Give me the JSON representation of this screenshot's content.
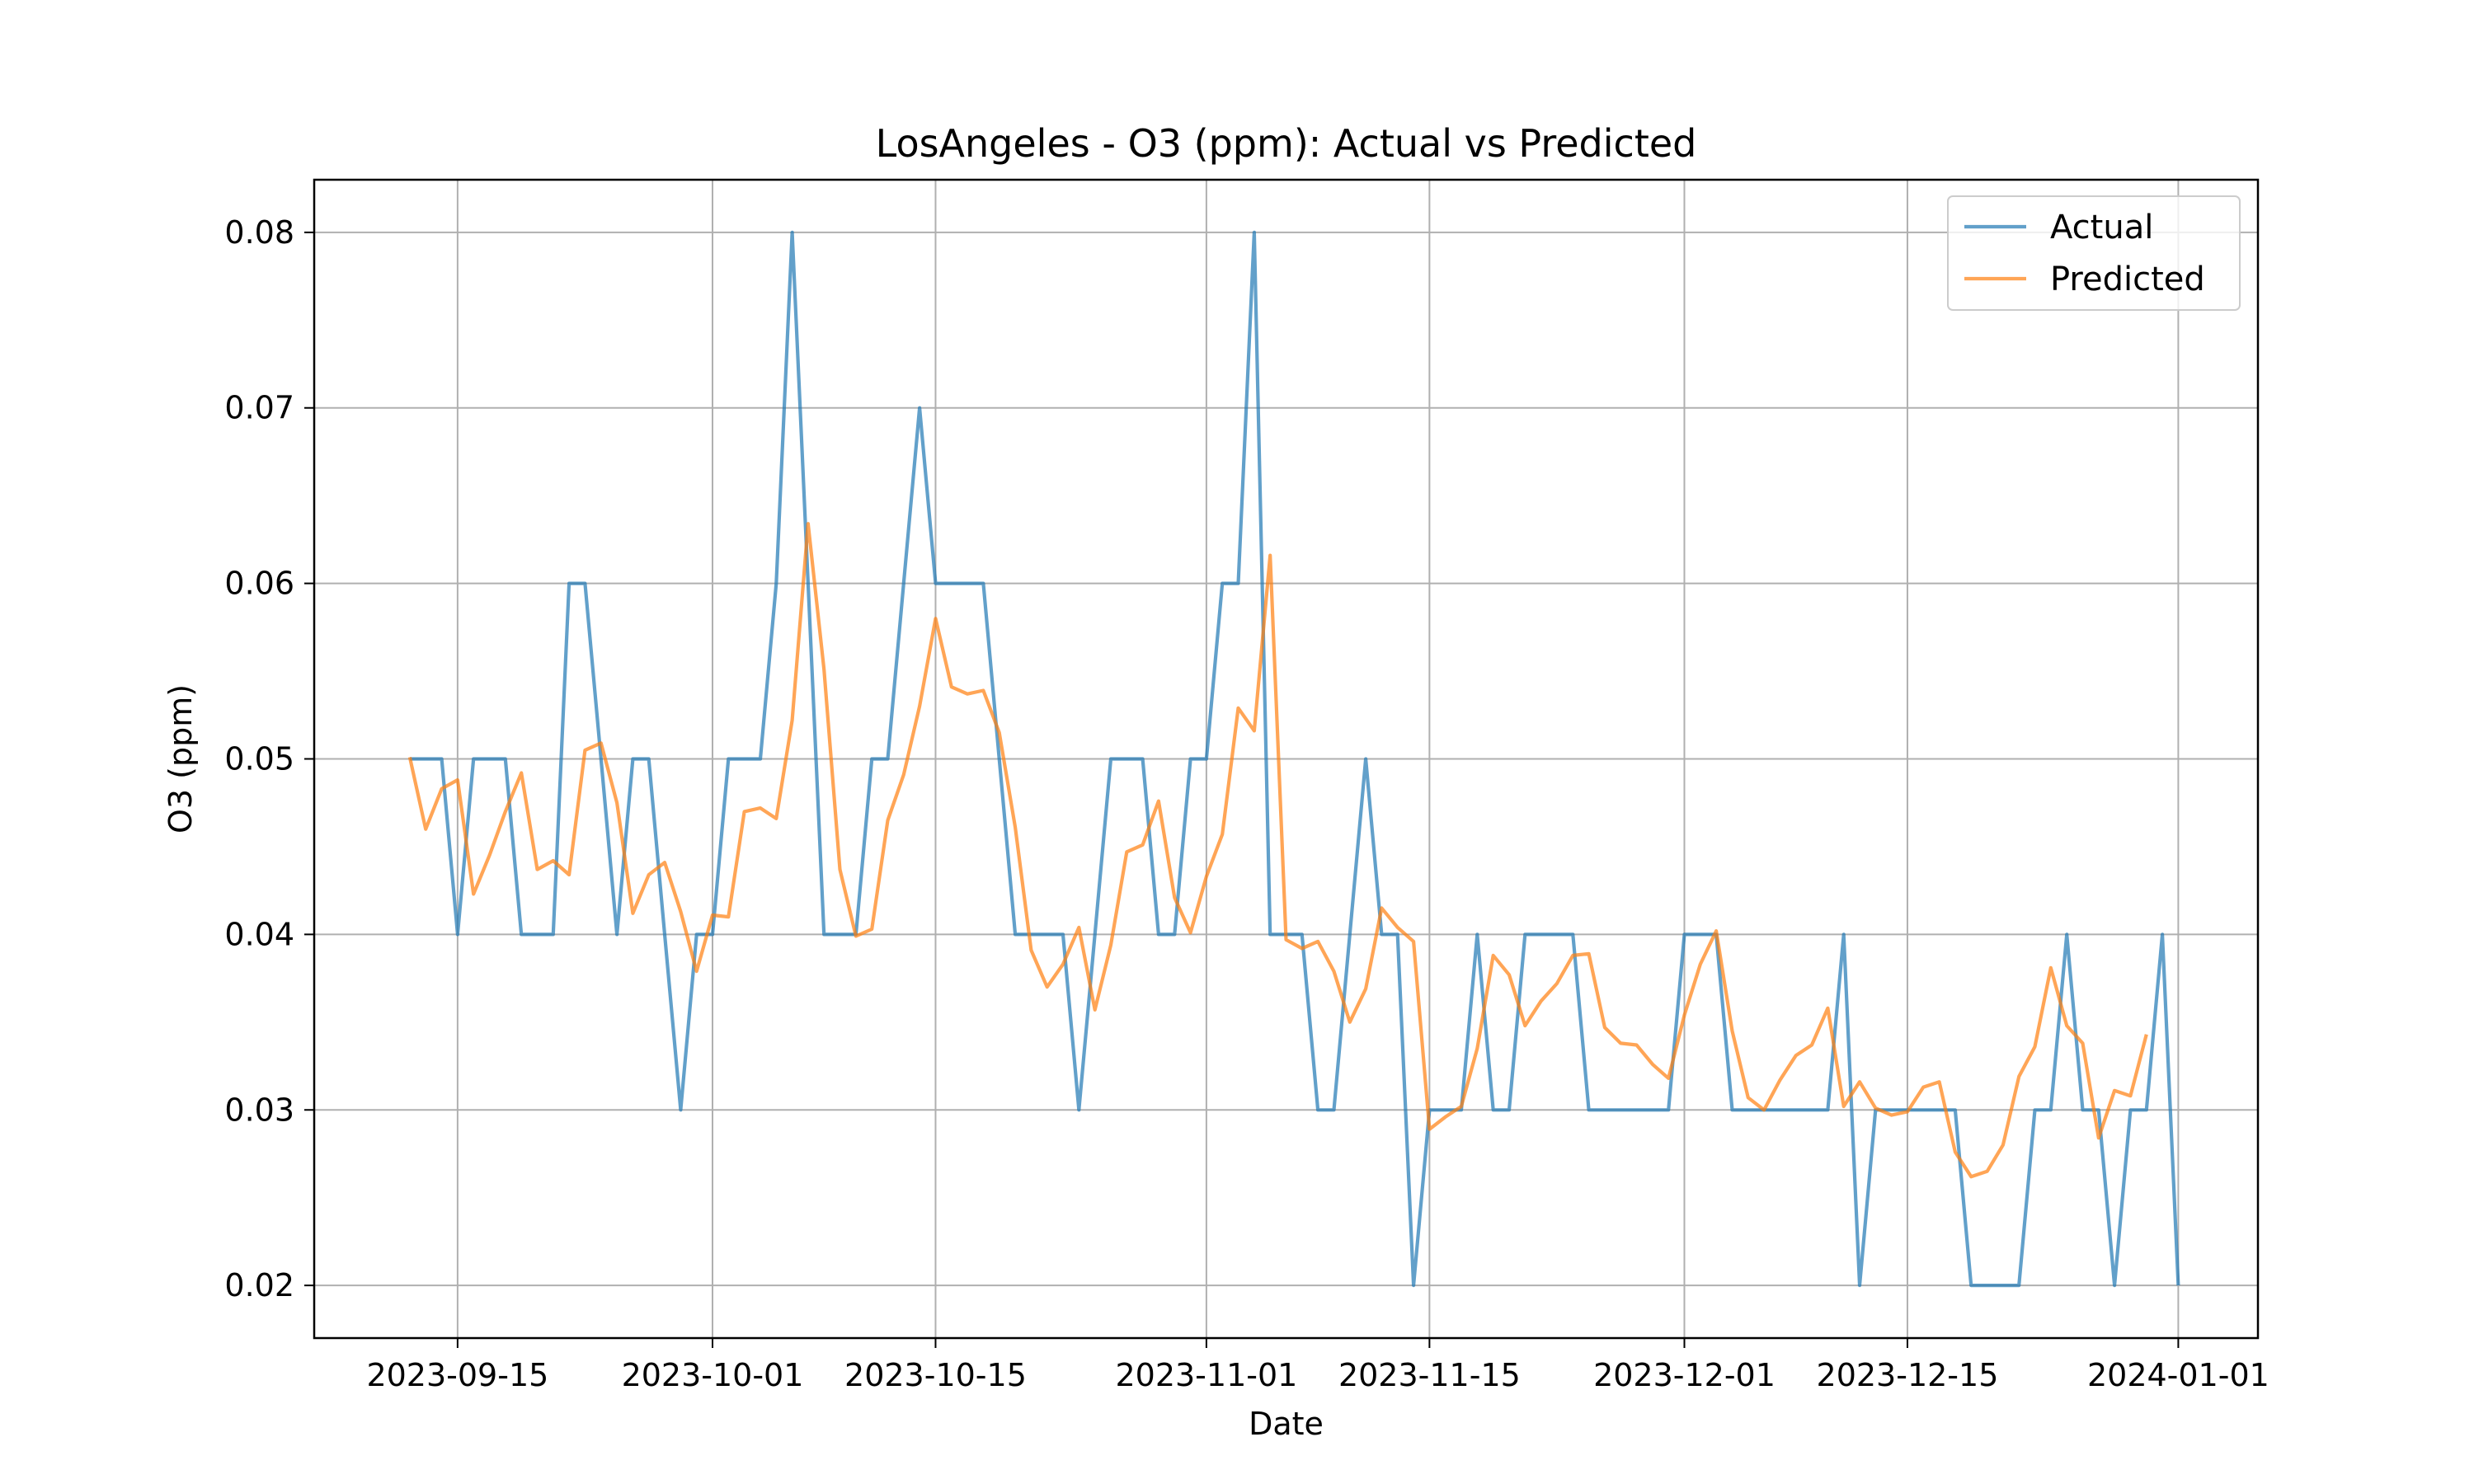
{
  "chart_data": {
    "type": "line",
    "title": "LosAngeles - O3 (ppm): Actual vs Predicted",
    "xlabel": "Date",
    "ylabel": "O3 (ppm)",
    "x_start": "2023-09-12",
    "x_end": "2023-12-31",
    "xlim": [
      "2023-09-06",
      "2024-01-06"
    ],
    "ylim": [
      0.017,
      0.083
    ],
    "x_ticks": [
      "2023-09-15",
      "2023-10-01",
      "2023-10-15",
      "2023-11-01",
      "2023-11-15",
      "2023-12-01",
      "2023-12-15",
      "2024-01-01"
    ],
    "y_ticks": [
      "0.02",
      "0.03",
      "0.04",
      "0.05",
      "0.06",
      "0.07",
      "0.08"
    ],
    "grid": true,
    "legend_position": "top-right",
    "series": [
      {
        "name": "Actual",
        "color": "#1f77b4",
        "values": [
          0.05,
          0.05,
          0.05,
          0.04,
          0.05,
          0.05,
          0.05,
          0.04,
          0.04,
          0.04,
          0.06,
          0.06,
          0.05,
          0.04,
          0.05,
          0.05,
          0.04,
          0.03,
          0.04,
          0.04,
          0.05,
          0.05,
          0.05,
          0.06,
          0.08,
          0.06,
          0.04,
          0.04,
          0.04,
          0.05,
          0.05,
          0.06,
          0.07,
          0.06,
          0.06,
          0.06,
          0.06,
          0.05,
          0.04,
          0.04,
          0.04,
          0.04,
          0.03,
          0.04,
          0.05,
          0.05,
          0.05,
          0.04,
          0.04,
          0.05,
          0.05,
          0.06,
          0.06,
          0.08,
          0.04,
          0.04,
          0.04,
          0.03,
          0.03,
          0.04,
          0.05,
          0.04,
          0.04,
          0.02,
          0.03,
          0.03,
          0.03,
          0.04,
          0.03,
          0.03,
          0.04,
          0.04,
          0.04,
          0.04,
          0.03,
          0.03,
          0.03,
          0.03,
          0.03,
          0.03,
          0.04,
          0.04,
          0.04,
          0.03,
          0.03,
          0.03,
          0.03,
          0.03,
          0.03,
          0.03,
          0.04,
          0.02,
          0.03,
          0.03,
          0.03,
          0.03,
          0.03,
          0.03,
          0.02,
          0.02,
          0.02,
          0.02,
          0.03,
          0.03,
          0.04,
          0.03,
          0.03,
          0.02,
          0.03,
          0.03,
          0.04,
          0.02
        ]
      },
      {
        "name": "Predicted",
        "color": "#ff7f0e",
        "values": [
          0.0501,
          0.046,
          0.0483,
          0.0488,
          0.0423,
          0.0445,
          0.047,
          0.0492,
          0.0437,
          0.0442,
          0.0434,
          0.0505,
          0.0509,
          0.0475,
          0.0412,
          0.0434,
          0.0441,
          0.0413,
          0.0379,
          0.0411,
          0.041,
          0.047,
          0.0472,
          0.0466,
          0.0522,
          0.0634,
          0.0551,
          0.0437,
          0.0399,
          0.0403,
          0.0465,
          0.0491,
          0.053,
          0.058,
          0.0541,
          0.0537,
          0.0539,
          0.0515,
          0.0461,
          0.0391,
          0.037,
          0.0383,
          0.0404,
          0.0357,
          0.0394,
          0.0447,
          0.0451,
          0.0476,
          0.0421,
          0.0401,
          0.0433,
          0.0457,
          0.0529,
          0.0516,
          0.0616,
          0.0397,
          0.0392,
          0.0396,
          0.0379,
          0.035,
          0.0369,
          0.0415,
          0.0404,
          0.0396,
          0.0289,
          0.0296,
          0.0302,
          0.0335,
          0.0388,
          0.0377,
          0.0348,
          0.0362,
          0.0372,
          0.0388,
          0.0389,
          0.0347,
          0.0338,
          0.0337,
          0.0326,
          0.0318,
          0.0354,
          0.0383,
          0.0402,
          0.0345,
          0.0307,
          0.03,
          0.0317,
          0.0331,
          0.0337,
          0.0358,
          0.0302,
          0.0316,
          0.0301,
          0.0297,
          0.0299,
          0.0313,
          0.0316,
          0.0276,
          0.0262,
          0.0265,
          0.028,
          0.0319,
          0.0336,
          0.0381,
          0.0348,
          0.0338,
          0.0284,
          0.0311,
          0.0308,
          0.0343
        ]
      }
    ]
  }
}
